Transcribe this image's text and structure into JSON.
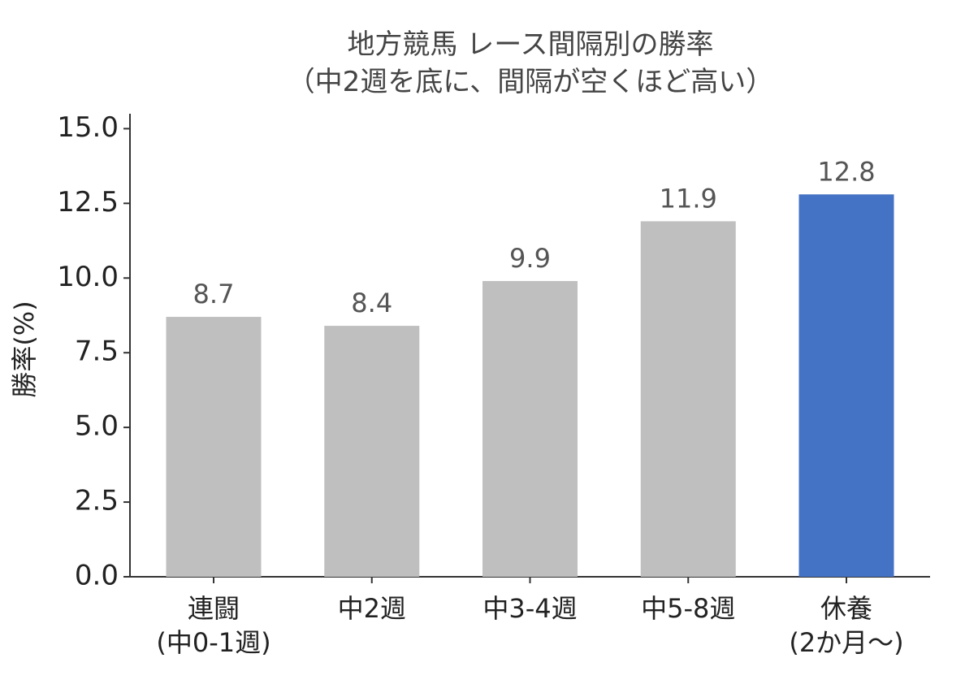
{
  "chart_data": {
    "type": "bar",
    "title": "地方競馬 レース間隔別の勝率\n（中2週を底に、間隔が空くほど高い）",
    "y_label": "勝率(%)",
    "categories": [
      "連闘\n(中0-1週)",
      "中2週",
      "中3-4週",
      "中5-8週",
      "休養\n(2か月〜)"
    ],
    "values": [
      8.7,
      8.4,
      9.9,
      11.9,
      12.8
    ],
    "colors": [
      "#bfbfbf",
      "#bfbfbf",
      "#bfbfbf",
      "#bfbfbf",
      "#4472c4"
    ],
    "ylim": [
      0,
      15.5
    ],
    "yticks": [
      {
        "value": 0,
        "label": "0.0"
      },
      2.5,
      {
        "value": 5,
        "label": "5.0"
      },
      7.5,
      {
        "value": 10,
        "label": "10.0"
      },
      12.5,
      {
        "value": 15,
        "label": "15.0"
      }
    ],
    "grid": false
  }
}
